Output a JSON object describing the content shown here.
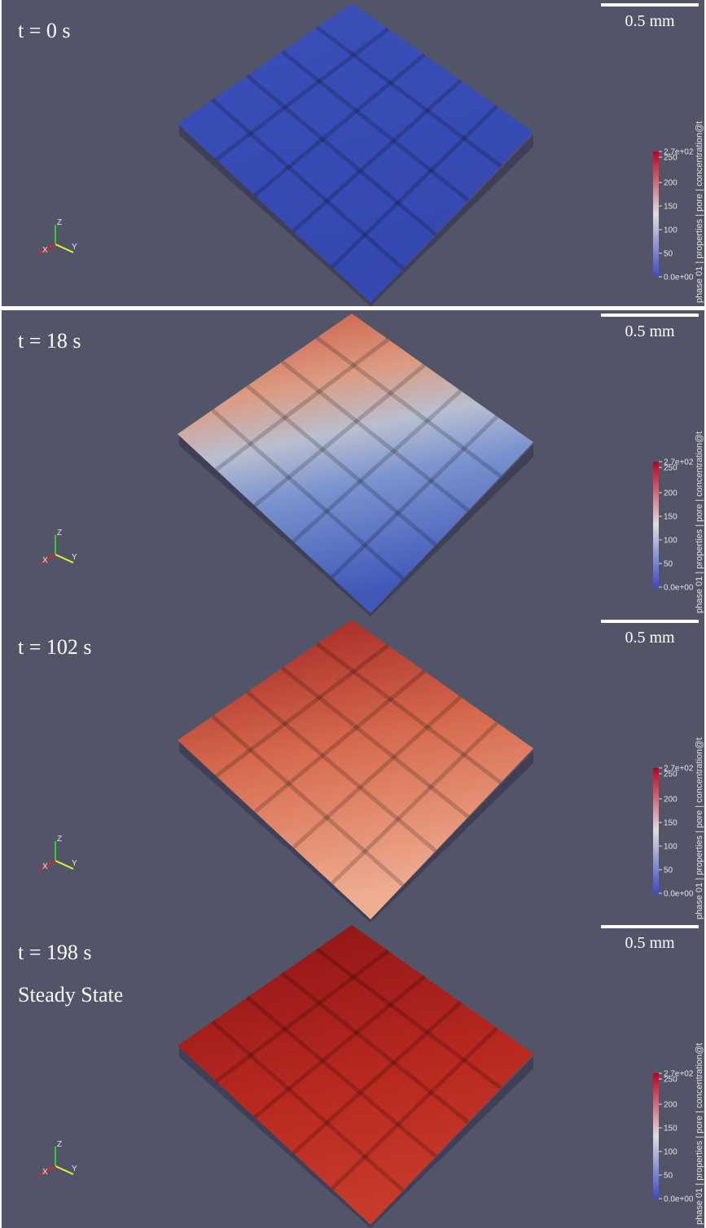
{
  "panels": [
    {
      "time": "t = 0 s",
      "scale_bar": "0.5 mm",
      "colorbar": {
        "title": "phase 01 | properties | pore | concentration@t",
        "ticks": [
          "2.7e+02",
          "250",
          "200",
          "150",
          "100",
          "50",
          "0.0e+00"
        ]
      },
      "axes": {
        "x": "X",
        "y": "Y",
        "z": "Z"
      }
    },
    {
      "time": "t = 18 s",
      "scale_bar": "0.5 mm",
      "colorbar": {
        "title": "phase 01 | properties | pore | concentration@t",
        "ticks": [
          "2.7e+02",
          "250",
          "200",
          "150",
          "100",
          "50",
          "0.0e+00"
        ]
      },
      "axes": {
        "x": "X",
        "y": "Y",
        "z": "Z"
      }
    },
    {
      "time": "t = 102 s",
      "scale_bar": "0.5 mm",
      "colorbar": {
        "title": "phase 01 | properties | pore | concentration@t",
        "ticks": [
          "2.7e+02",
          "250",
          "200",
          "150",
          "100",
          "50",
          "0.0e+00"
        ]
      },
      "axes": {
        "x": "X",
        "y": "Y",
        "z": "Z"
      }
    },
    {
      "time": "t = 198 s",
      "note": "Steady State",
      "scale_bar": "0.5 mm",
      "colorbar": {
        "title": "phase 01 | properties | pore | concentration@t",
        "ticks": [
          "2.7e+02",
          "250",
          "200",
          "150",
          "100",
          "50",
          "0.0e+00"
        ]
      },
      "axes": {
        "x": "X",
        "y": "Y",
        "z": "Z"
      }
    }
  ]
}
